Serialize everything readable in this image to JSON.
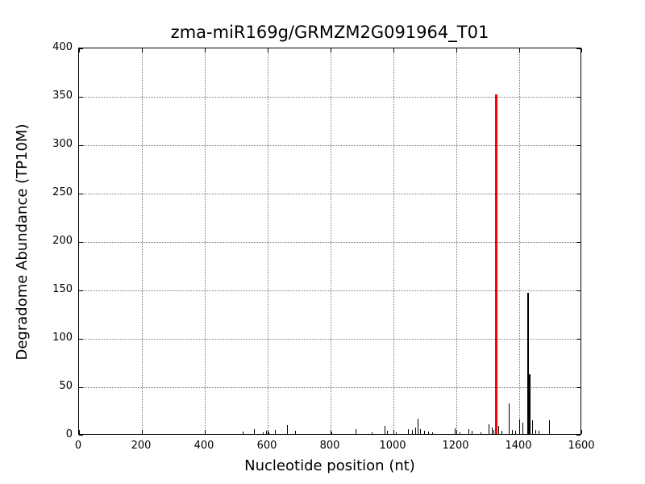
{
  "title": "zma-miR169g/GRMZM2G091964_T01",
  "chart_data": {
    "type": "bar",
    "title": "zma-miR169g/GRMZM2G091964_T01",
    "xlabel": "Nucleotide position (nt)",
    "ylabel": "Degradome Abundance (TP10M)",
    "xlim": [
      0,
      1600
    ],
    "ylim": [
      0,
      400
    ],
    "xticks": [
      0,
      200,
      400,
      600,
      800,
      1000,
      1200,
      1400,
      1600
    ],
    "yticks": [
      0,
      50,
      100,
      150,
      200,
      250,
      300,
      350,
      400
    ],
    "grid": true,
    "grid_style": "dotted",
    "background_color": "#ffffff",
    "bar_color": "#000000",
    "highlight_color": "#ff0000",
    "highlight_peak": {
      "x": 1325,
      "value": 351
    },
    "peaks": [
      {
        "x": 520,
        "value": 2.5
      },
      {
        "x": 556,
        "value": 5
      },
      {
        "x": 585,
        "value": 2
      },
      {
        "x": 595,
        "value": 3
      },
      {
        "x": 602,
        "value": 2
      },
      {
        "x": 623,
        "value": 4
      },
      {
        "x": 662,
        "value": 9
      },
      {
        "x": 687,
        "value": 3.5
      },
      {
        "x": 803,
        "value": 2
      },
      {
        "x": 879,
        "value": 5
      },
      {
        "x": 931,
        "value": 2
      },
      {
        "x": 972,
        "value": 8
      },
      {
        "x": 979,
        "value": 3
      },
      {
        "x": 1008,
        "value": 2
      },
      {
        "x": 1046,
        "value": 5
      },
      {
        "x": 1059,
        "value": 4
      },
      {
        "x": 1069,
        "value": 7
      },
      {
        "x": 1077,
        "value": 16
      },
      {
        "x": 1085,
        "value": 5
      },
      {
        "x": 1097,
        "value": 3
      },
      {
        "x": 1110,
        "value": 2.5
      },
      {
        "x": 1123,
        "value": 2
      },
      {
        "x": 1195,
        "value": 6
      },
      {
        "x": 1210,
        "value": 2
      },
      {
        "x": 1238,
        "value": 5
      },
      {
        "x": 1249,
        "value": 3
      },
      {
        "x": 1277,
        "value": 2
      },
      {
        "x": 1303,
        "value": 10
      },
      {
        "x": 1313,
        "value": 7
      },
      {
        "x": 1318,
        "value": 4
      },
      {
        "x": 1333,
        "value": 8
      },
      {
        "x": 1344,
        "value": 3
      },
      {
        "x": 1366,
        "value": 32
      },
      {
        "x": 1377,
        "value": 4
      },
      {
        "x": 1387,
        "value": 3
      },
      {
        "x": 1400,
        "value": 15
      },
      {
        "x": 1410,
        "value": 12
      },
      {
        "x": 1426,
        "value": 146
      },
      {
        "x": 1431,
        "value": 62
      },
      {
        "x": 1441,
        "value": 14
      },
      {
        "x": 1452,
        "value": 4
      },
      {
        "x": 1461,
        "value": 3
      },
      {
        "x": 1495,
        "value": 14
      }
    ]
  }
}
